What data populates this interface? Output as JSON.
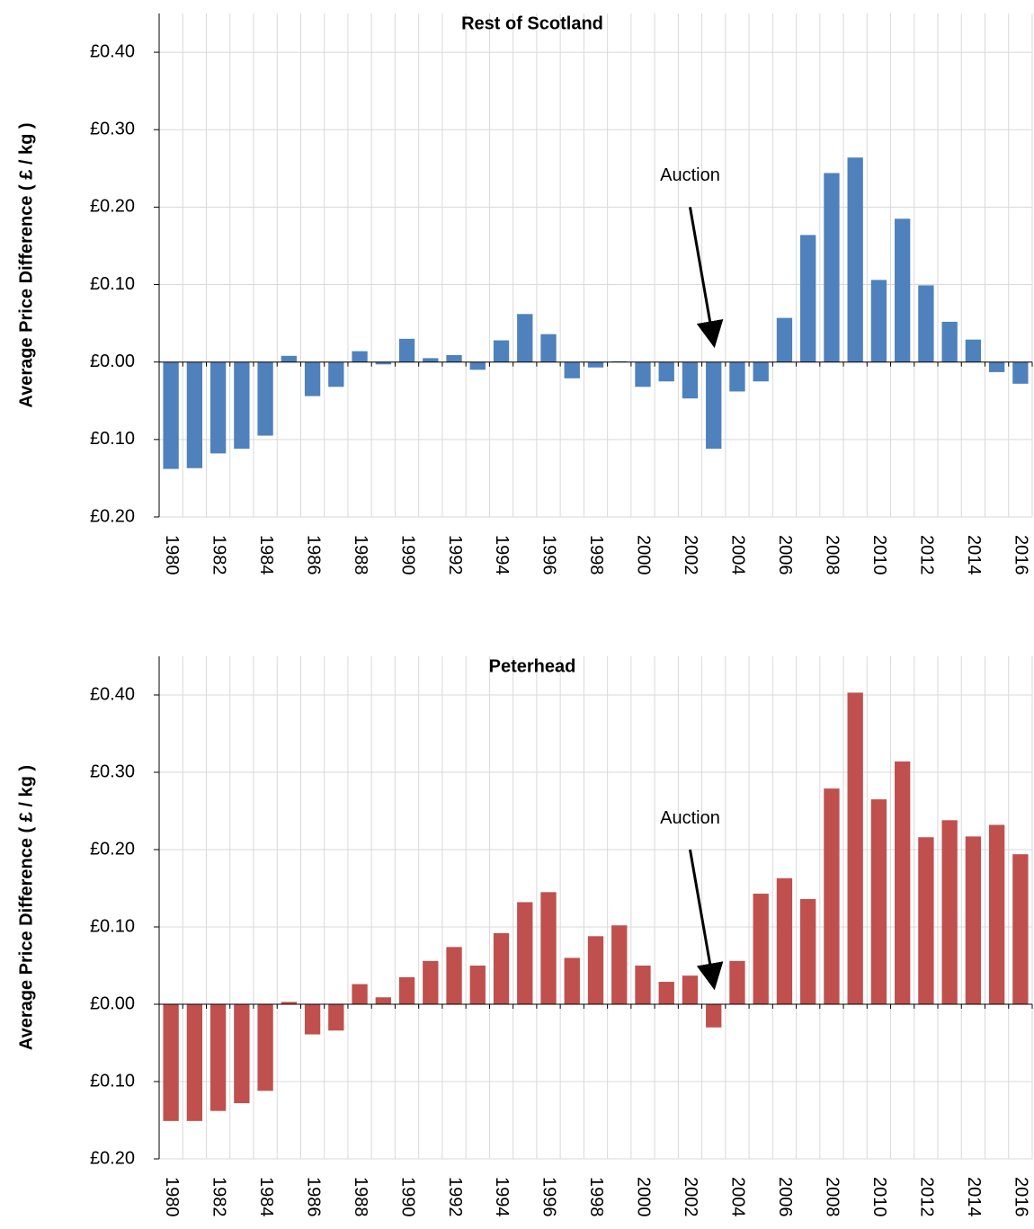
{
  "chart_data": [
    {
      "type": "bar",
      "title": "Rest of Scotland",
      "y_label": "Average Price Difference ( £ / kg )",
      "annotation": "Auction",
      "categories": [
        "1980",
        null,
        "1982",
        null,
        "1984",
        null,
        "1986",
        null,
        "1988",
        null,
        "1990",
        null,
        "1992",
        null,
        "1994",
        null,
        "1996",
        null,
        "1998",
        null,
        "2000",
        null,
        "2002",
        null,
        "2004",
        null,
        "2006",
        null,
        "2008",
        null,
        "2010",
        null,
        "2012",
        null,
        "2014",
        null,
        "2016"
      ],
      "values": [
        -0.138,
        -0.137,
        -0.118,
        -0.112,
        -0.095,
        0.008,
        -0.044,
        -0.032,
        0.014,
        -0.003,
        0.03,
        0.005,
        0.009,
        -0.01,
        0.028,
        0.062,
        0.036,
        -0.021,
        -0.007,
        0.001,
        -0.032,
        -0.025,
        -0.047,
        -0.112,
        -0.038,
        -0.025,
        0.057,
        0.164,
        0.244,
        0.264,
        0.106,
        0.185,
        0.099,
        0.052,
        0.029,
        -0.013,
        -0.028
      ],
      "color": "#4f81bd",
      "negative_tick_color": "#ff0000",
      "ylim": [
        -0.2,
        0.45
      ],
      "yticks": [
        {
          "value": -0.2,
          "label": "£0.20"
        },
        {
          "value": -0.1,
          "label": "£0.10"
        },
        {
          "value": 0,
          "label": "£0.00"
        },
        {
          "value": 0.1,
          "label": "£0.10"
        },
        {
          "value": 0.2,
          "label": "£0.20"
        },
        {
          "value": 0.3,
          "label": "£0.30"
        },
        {
          "value": 0.4,
          "label": "£0.40"
        }
      ],
      "grid": true
    },
    {
      "type": "bar",
      "title": "Peterhead",
      "y_label": "Average Price Difference ( £ / kg )",
      "annotation": "Auction",
      "categories": [
        "1980",
        null,
        "1982",
        null,
        "1984",
        null,
        "1986",
        null,
        "1988",
        null,
        "1990",
        null,
        "1992",
        null,
        "1994",
        null,
        "1996",
        null,
        "1998",
        null,
        "2000",
        null,
        "2002",
        null,
        "2004",
        null,
        "2006",
        null,
        "2008",
        null,
        "2010",
        null,
        "2012",
        null,
        "2014",
        null,
        "2016"
      ],
      "values": [
        -0.151,
        -0.151,
        -0.138,
        -0.128,
        -0.112,
        0.003,
        -0.039,
        -0.034,
        0.026,
        0.009,
        0.035,
        0.056,
        0.074,
        0.05,
        0.092,
        0.132,
        0.145,
        0.06,
        0.088,
        0.102,
        0.05,
        0.029,
        0.037,
        -0.03,
        0.056,
        0.143,
        0.163,
        0.136,
        0.279,
        0.403,
        0.265,
        0.314,
        0.216,
        0.238,
        0.217,
        0.232,
        0.194
      ],
      "color": "#c0504d",
      "negative_tick_color": "#ff0000",
      "ylim": [
        -0.2,
        0.45
      ],
      "yticks": [
        {
          "value": -0.2,
          "label": "£0.20"
        },
        {
          "value": -0.1,
          "label": "£0.10"
        },
        {
          "value": 0,
          "label": "£0.00"
        },
        {
          "value": 0.1,
          "label": "£0.10"
        },
        {
          "value": 0.2,
          "label": "£0.20"
        },
        {
          "value": 0.3,
          "label": "£0.30"
        },
        {
          "value": 0.4,
          "label": "£0.40"
        }
      ],
      "grid": true
    }
  ]
}
